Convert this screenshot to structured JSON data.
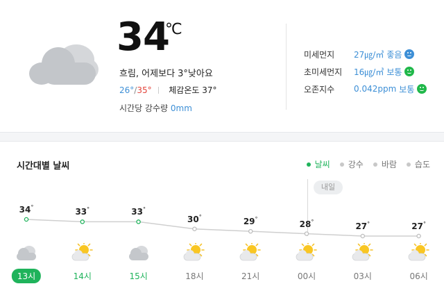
{
  "current": {
    "temperature": "34",
    "unit": "℃",
    "description": "흐림, 어제보다 3°낮아요",
    "min": "26°",
    "max": "35°",
    "feels_like": "체감온도 37°",
    "precip_label": "시간당 강수량",
    "precip_value": "0mm",
    "icon": "cloud-icon"
  },
  "air_quality": [
    {
      "label": "미세먼지",
      "value": "27㎍/㎥",
      "grade": "좋음",
      "color": "#3d8fd6",
      "face_color": "#3d8fd6"
    },
    {
      "label": "초미세먼지",
      "value": "16㎍/㎥",
      "grade": "보통",
      "color": "#3d8fd6",
      "face_color": "#20b84a"
    },
    {
      "label": "오존지수",
      "value": "0.042ppm",
      "grade": "보통",
      "color": "#3d8fd6",
      "face_color": "#20b84a"
    }
  ],
  "hourly": {
    "title": "시간대별 날씨",
    "tabs": [
      "날씨",
      "강수",
      "바람",
      "습도"
    ],
    "active_tab": "날씨",
    "tomorrow_label": "내일",
    "temp_unit": "°",
    "items": [
      {
        "hour": "13시",
        "temp": 34,
        "icon": "cloud-icon",
        "style": "now"
      },
      {
        "hour": "14시",
        "temp": 33,
        "icon": "sun-cloud-icon",
        "style": "green"
      },
      {
        "hour": "15시",
        "temp": 33,
        "icon": "cloud-icon",
        "style": "green"
      },
      {
        "hour": "18시",
        "temp": 30,
        "icon": "sun-cloud-icon",
        "style": "gray"
      },
      {
        "hour": "21시",
        "temp": 29,
        "icon": "sun-cloud-icon",
        "style": "gray"
      },
      {
        "hour": "00시",
        "temp": 28,
        "icon": "sun-cloud-icon",
        "style": "gray"
      },
      {
        "hour": "03시",
        "temp": 27,
        "icon": "sun-cloud-icon",
        "style": "gray"
      },
      {
        "hour": "06시",
        "temp": 27,
        "icon": "sun-cloud-icon",
        "style": "gray"
      }
    ]
  },
  "colors": {
    "accent_green": "#1fb35b",
    "accent_blue": "#3d8fd6",
    "max_red": "#e3443b",
    "line_gray": "#cfcfcf"
  }
}
